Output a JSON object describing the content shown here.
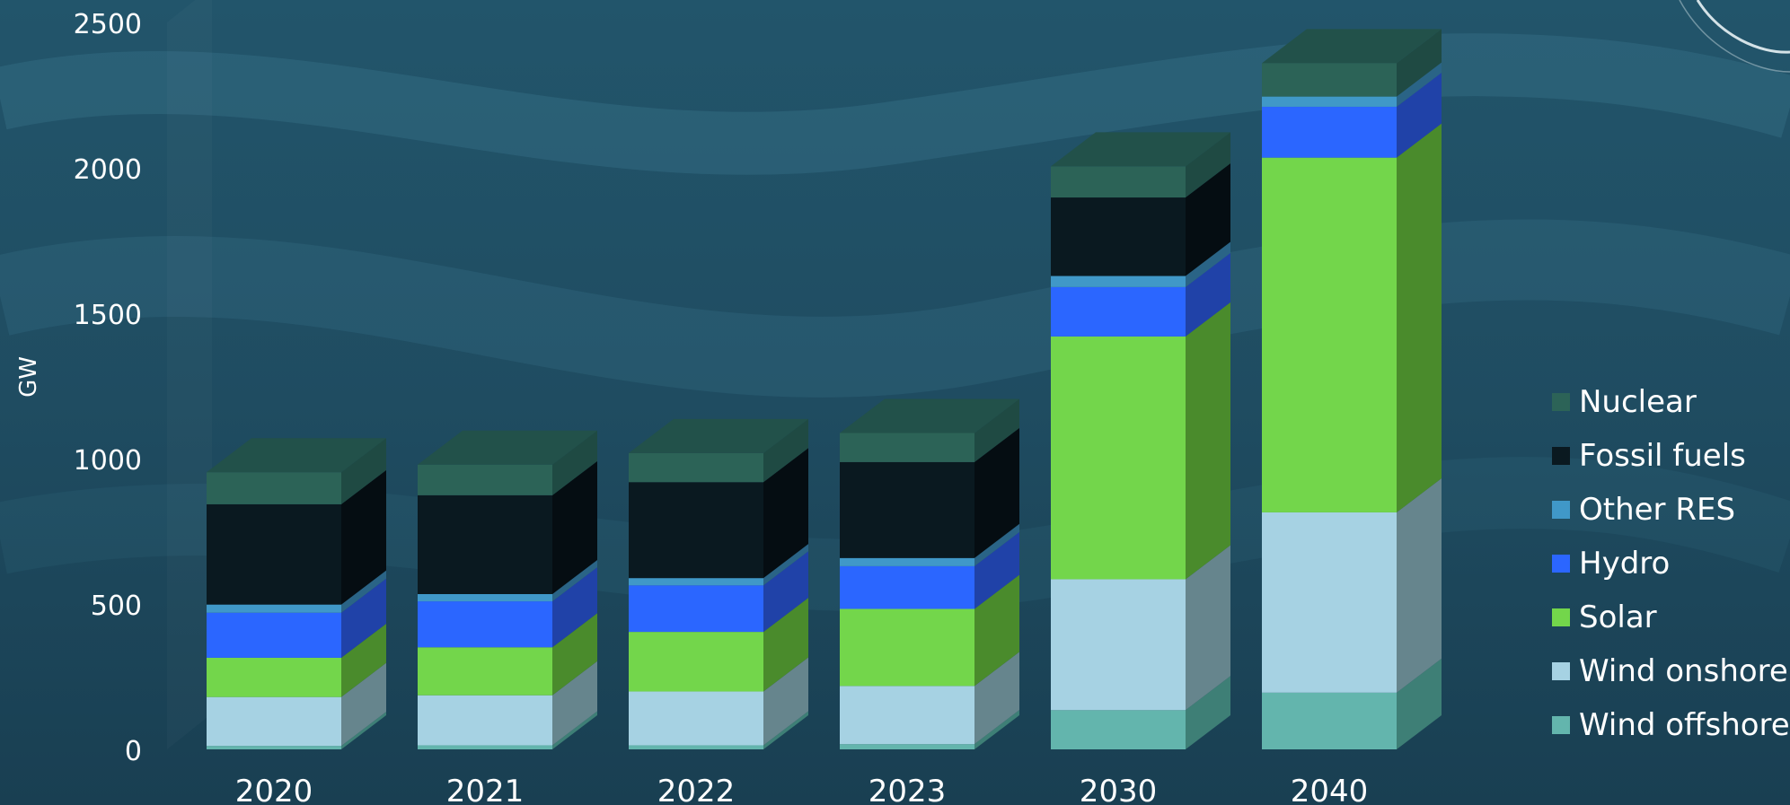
{
  "chart_data": {
    "type": "bar",
    "stacked": true,
    "style": "3d",
    "ylabel": "GW",
    "xlabel": "",
    "ylim": [
      0,
      2500
    ],
    "yticks": [
      0,
      500,
      1000,
      1500,
      2000,
      2500
    ],
    "categories": [
      "2020",
      "2021",
      "2022",
      "2023",
      "2030",
      "2040"
    ],
    "legend_position": "right",
    "series": [
      {
        "name": "Wind offshore",
        "color": "#63b5ad",
        "side": "#3e7f76",
        "values": [
          12,
          14,
          14,
          18,
          135,
          195
        ]
      },
      {
        "name": "Wind onshore",
        "color": "#a6d2e3",
        "side": "#66858d",
        "values": [
          168,
          172,
          185,
          200,
          450,
          620
        ]
      },
      {
        "name": "Solar",
        "color": "#73d64b",
        "side": "#4a8b2c",
        "values": [
          135,
          165,
          205,
          265,
          835,
          1220
        ]
      },
      {
        "name": "Hydro",
        "color": "#2b66ff",
        "side": "#2042a8",
        "values": [
          155,
          158,
          160,
          147,
          170,
          175
        ]
      },
      {
        "name": "Other RES",
        "color": "#4098c8",
        "side": "#2a6486",
        "values": [
          28,
          25,
          25,
          28,
          38,
          35
        ]
      },
      {
        "name": "Fossil fuels",
        "color": "#0a1920",
        "side": "#050d12",
        "values": [
          345,
          340,
          330,
          330,
          270,
          0
        ]
      },
      {
        "name": "Nuclear",
        "color": "#2c6357",
        "side": "#1f4a43",
        "values": [
          110,
          105,
          100,
          100,
          107,
          115
        ]
      }
    ]
  }
}
